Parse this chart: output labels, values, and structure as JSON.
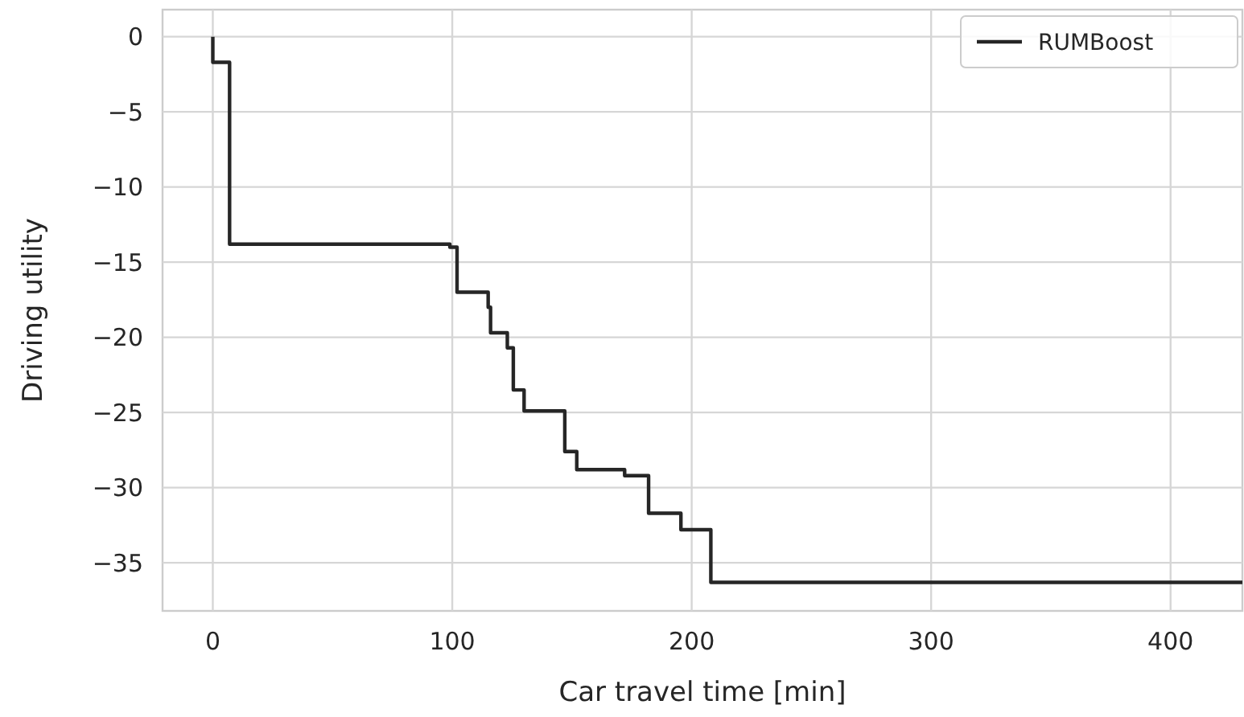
{
  "chart_data": {
    "type": "step",
    "xlabel": "Car travel time [min]",
    "ylabel": "Driving utility",
    "x": [
      0,
      0,
      7,
      99,
      102,
      115,
      116,
      123,
      125.5,
      130,
      147,
      152,
      172,
      182,
      195.5,
      208,
      430
    ],
    "series": [
      {
        "name": "RUMBoost",
        "color": "#262626",
        "values": [
          0,
          -1.7,
          -13.8,
          -14.0,
          -17.0,
          -18.0,
          -19.7,
          -20.7,
          -23.5,
          -24.9,
          -27.6,
          -28.8,
          -29.2,
          -31.7,
          -32.8,
          -36.3,
          -36.3
        ]
      }
    ],
    "xlim": [
      -21,
      430
    ],
    "xticks": [
      0,
      100,
      200,
      300,
      400
    ],
    "ylim": [
      -38.2,
      1.8
    ],
    "yticks": [
      0,
      -5,
      -10,
      -15,
      -20,
      -25,
      -30,
      -35
    ],
    "grid": true,
    "legend": "top right",
    "line_style": "solid"
  }
}
